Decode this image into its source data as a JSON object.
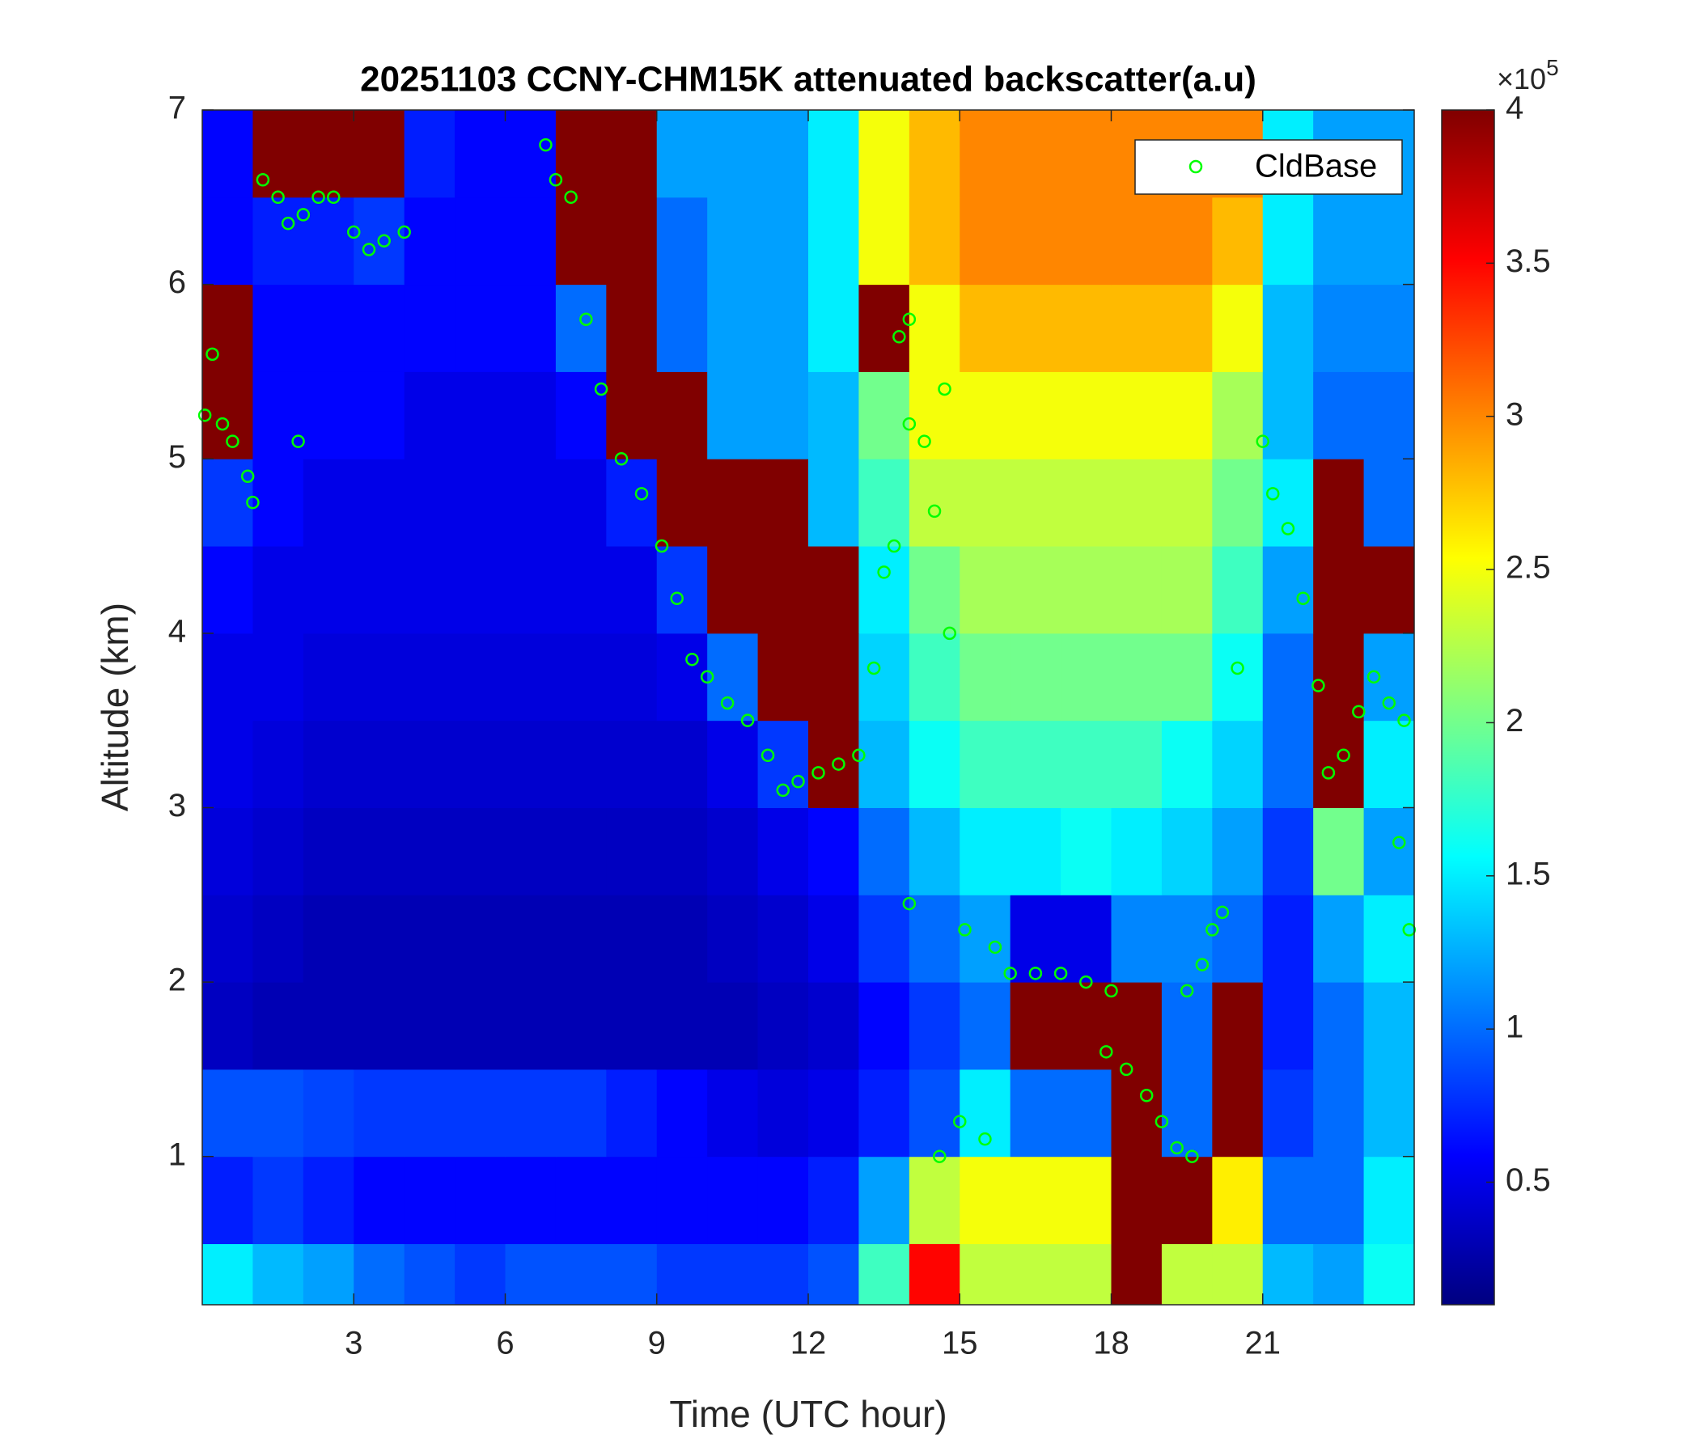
{
  "chart_data": {
    "type": "heatmap",
    "title": "20251103 CCNY-CHM15K attenuated backscatter(a.u)",
    "xlabel": "Time (UTC hour)",
    "ylabel": "Altitude (km)",
    "xlim": [
      0,
      24
    ],
    "ylim": [
      0.15,
      7
    ],
    "xticks": [
      3,
      6,
      9,
      12,
      15,
      18,
      21
    ],
    "yticks": [
      1,
      2,
      3,
      4,
      5,
      6,
      7
    ],
    "colormap": "jet",
    "clim": [
      0.1,
      4
    ],
    "cticks": [
      0.5,
      1,
      1.5,
      2,
      2.5,
      3,
      3.5,
      4
    ],
    "colorbar_label": "×10",
    "colorbar_exponent": 5,
    "legend_position": "upper right",
    "x": [
      0.5,
      1.5,
      2.5,
      3.5,
      4.5,
      5.5,
      6.5,
      7.5,
      8.5,
      9.5,
      10.5,
      11.5,
      12.5,
      13.5,
      14.5,
      15.5,
      16.5,
      17.5,
      18.5,
      19.5,
      20.5,
      21.5,
      22.5,
      23.5
    ],
    "y": [
      0.25,
      0.75,
      1.25,
      1.75,
      2.25,
      2.75,
      3.25,
      3.75,
      4.25,
      4.75,
      5.25,
      5.75,
      6.25,
      6.75
    ],
    "z": [
      [
        1.5,
        1.3,
        1.2,
        1,
        0.9,
        0.8,
        0.9,
        0.9,
        0.9,
        0.8,
        0.8,
        0.8,
        0.9,
        1.8,
        3.5,
        2.3,
        2.3,
        2.3,
        4,
        2.3,
        2.3,
        1.3,
        1.2,
        1.6
      ],
      [
        0.7,
        0.8,
        0.7,
        0.6,
        0.6,
        0.6,
        0.6,
        0.6,
        0.6,
        0.6,
        0.6,
        0.6,
        0.7,
        1.2,
        2.3,
        2.5,
        2.5,
        2.5,
        4,
        4,
        2.6,
        1,
        1,
        1.5
      ],
      [
        0.9,
        0.9,
        0.85,
        0.8,
        0.8,
        0.8,
        0.8,
        0.8,
        0.7,
        0.6,
        0.5,
        0.45,
        0.5,
        0.7,
        0.9,
        1.5,
        1,
        1,
        4,
        1,
        4,
        0.8,
        1,
        1.3
      ],
      [
        0.35,
        0.3,
        0.3,
        0.3,
        0.3,
        0.3,
        0.3,
        0.3,
        0.3,
        0.3,
        0.3,
        0.35,
        0.4,
        0.6,
        0.8,
        1,
        4,
        4,
        4,
        1,
        4,
        0.7,
        1,
        1.3
      ],
      [
        0.4,
        0.35,
        0.3,
        0.3,
        0.3,
        0.3,
        0.3,
        0.3,
        0.3,
        0.3,
        0.35,
        0.4,
        0.5,
        0.8,
        1,
        1.2,
        0.5,
        0.5,
        1.1,
        1.1,
        1,
        0.7,
        1.2,
        1.5
      ],
      [
        0.45,
        0.4,
        0.35,
        0.35,
        0.35,
        0.35,
        0.35,
        0.35,
        0.35,
        0.35,
        0.4,
        0.5,
        0.6,
        1,
        1.3,
        1.5,
        1.5,
        1.6,
        1.5,
        1.4,
        1.2,
        0.8,
        2,
        1.2
      ],
      [
        0.5,
        0.45,
        0.4,
        0.4,
        0.4,
        0.4,
        0.4,
        0.4,
        0.4,
        0.4,
        0.5,
        0.8,
        4,
        1.3,
        1.6,
        1.8,
        1.8,
        1.8,
        1.8,
        1.6,
        1.4,
        1,
        4,
        1.5
      ],
      [
        0.5,
        0.5,
        0.45,
        0.45,
        0.45,
        0.45,
        0.45,
        0.45,
        0.45,
        0.5,
        1,
        4,
        4,
        1.4,
        1.8,
        2,
        2,
        2,
        2,
        2,
        1.6,
        1,
        4,
        1.2
      ],
      [
        0.6,
        0.5,
        0.5,
        0.5,
        0.5,
        0.5,
        0.5,
        0.5,
        0.5,
        0.8,
        4,
        4,
        4,
        1.5,
        2,
        2.2,
        2.2,
        2.2,
        2.2,
        2.2,
        1.8,
        1.2,
        4,
        4
      ],
      [
        0.8,
        0.6,
        0.5,
        0.5,
        0.5,
        0.5,
        0.5,
        0.5,
        0.7,
        4,
        4,
        4,
        1.3,
        1.8,
        2.3,
        2.3,
        2.3,
        2.3,
        2.3,
        2.3,
        2,
        1.5,
        4,
        1
      ],
      [
        4,
        0.6,
        0.6,
        0.6,
        0.5,
        0.5,
        0.5,
        0.6,
        4,
        4,
        1.2,
        1.2,
        1.3,
        2,
        2.5,
        2.5,
        2.5,
        2.5,
        2.5,
        2.5,
        2.2,
        1.3,
        1,
        1
      ],
      [
        4,
        0.6,
        0.6,
        0.6,
        0.6,
        0.6,
        0.6,
        1,
        4,
        1,
        1.2,
        1.2,
        1.5,
        4,
        2.5,
        2.8,
        2.8,
        2.8,
        2.8,
        2.8,
        2.5,
        1.3,
        1.1,
        1.1
      ],
      [
        0.6,
        0.7,
        0.7,
        0.8,
        0.6,
        0.6,
        0.6,
        4,
        4,
        1,
        1.2,
        1.2,
        1.5,
        2.5,
        2.8,
        3,
        3,
        3,
        3,
        3,
        2.8,
        1.5,
        1.2,
        1.2
      ],
      [
        0.6,
        4,
        4,
        4,
        0.7,
        0.6,
        0.6,
        4,
        4,
        1.2,
        1.2,
        1.2,
        1.5,
        2.5,
        2.8,
        3,
        3,
        3,
        3,
        3,
        3,
        1.5,
        1.2,
        1.2
      ]
    ],
    "series": [
      {
        "name": "CldBase",
        "color": "#00ff00",
        "x": [
          0.05,
          0.2,
          0.4,
          0.6,
          0.9,
          1,
          1.2,
          1.5,
          1.7,
          2,
          2.3,
          2.6,
          3,
          3.3,
          3.6,
          4,
          1.9,
          6.8,
          7,
          7.3,
          7.6,
          7.9,
          8.3,
          8.7,
          9.1,
          9.4,
          9.7,
          10,
          10.4,
          10.8,
          11.2,
          11.5,
          11.8,
          12.2,
          12.6,
          13,
          13.3,
          13.5,
          13.7,
          13.8,
          14,
          14,
          14.3,
          14.5,
          14.7,
          14.8,
          14,
          15.1,
          14.6,
          15,
          15.5,
          15.7,
          16,
          16.5,
          17,
          17.5,
          18,
          17.9,
          18.3,
          18.7,
          19,
          19.3,
          19.6,
          19.5,
          19.8,
          20,
          20.2,
          20.5,
          21,
          21.2,
          21.5,
          21.8,
          22.1,
          22.3,
          22.6,
          22.9,
          23.2,
          23.5,
          23.8,
          23.7,
          23.9
        ],
        "values": [
          5.25,
          5.6,
          5.2,
          5.1,
          4.9,
          4.75,
          6.6,
          6.5,
          6.35,
          6.4,
          6.5,
          6.5,
          6.3,
          6.2,
          6.25,
          6.3,
          5.1,
          6.8,
          6.6,
          6.5,
          5.8,
          5.4,
          5,
          4.8,
          4.5,
          4.2,
          3.85,
          3.75,
          3.6,
          3.5,
          3.3,
          3.1,
          3.15,
          3.2,
          3.25,
          3.3,
          3.8,
          4.35,
          4.5,
          5.7,
          5.8,
          5.2,
          5.1,
          4.7,
          5.4,
          4,
          2.45,
          2.3,
          1,
          1.2,
          1.1,
          2.2,
          2.05,
          2.05,
          2.05,
          2,
          1.95,
          1.6,
          1.5,
          1.35,
          1.2,
          1.05,
          1,
          1.95,
          2.1,
          2.3,
          2.4,
          3.8,
          5.1,
          4.8,
          4.6,
          4.2,
          3.7,
          3.2,
          3.3,
          3.55,
          3.75,
          3.6,
          3.5,
          2.8,
          2.3
        ]
      }
    ]
  }
}
